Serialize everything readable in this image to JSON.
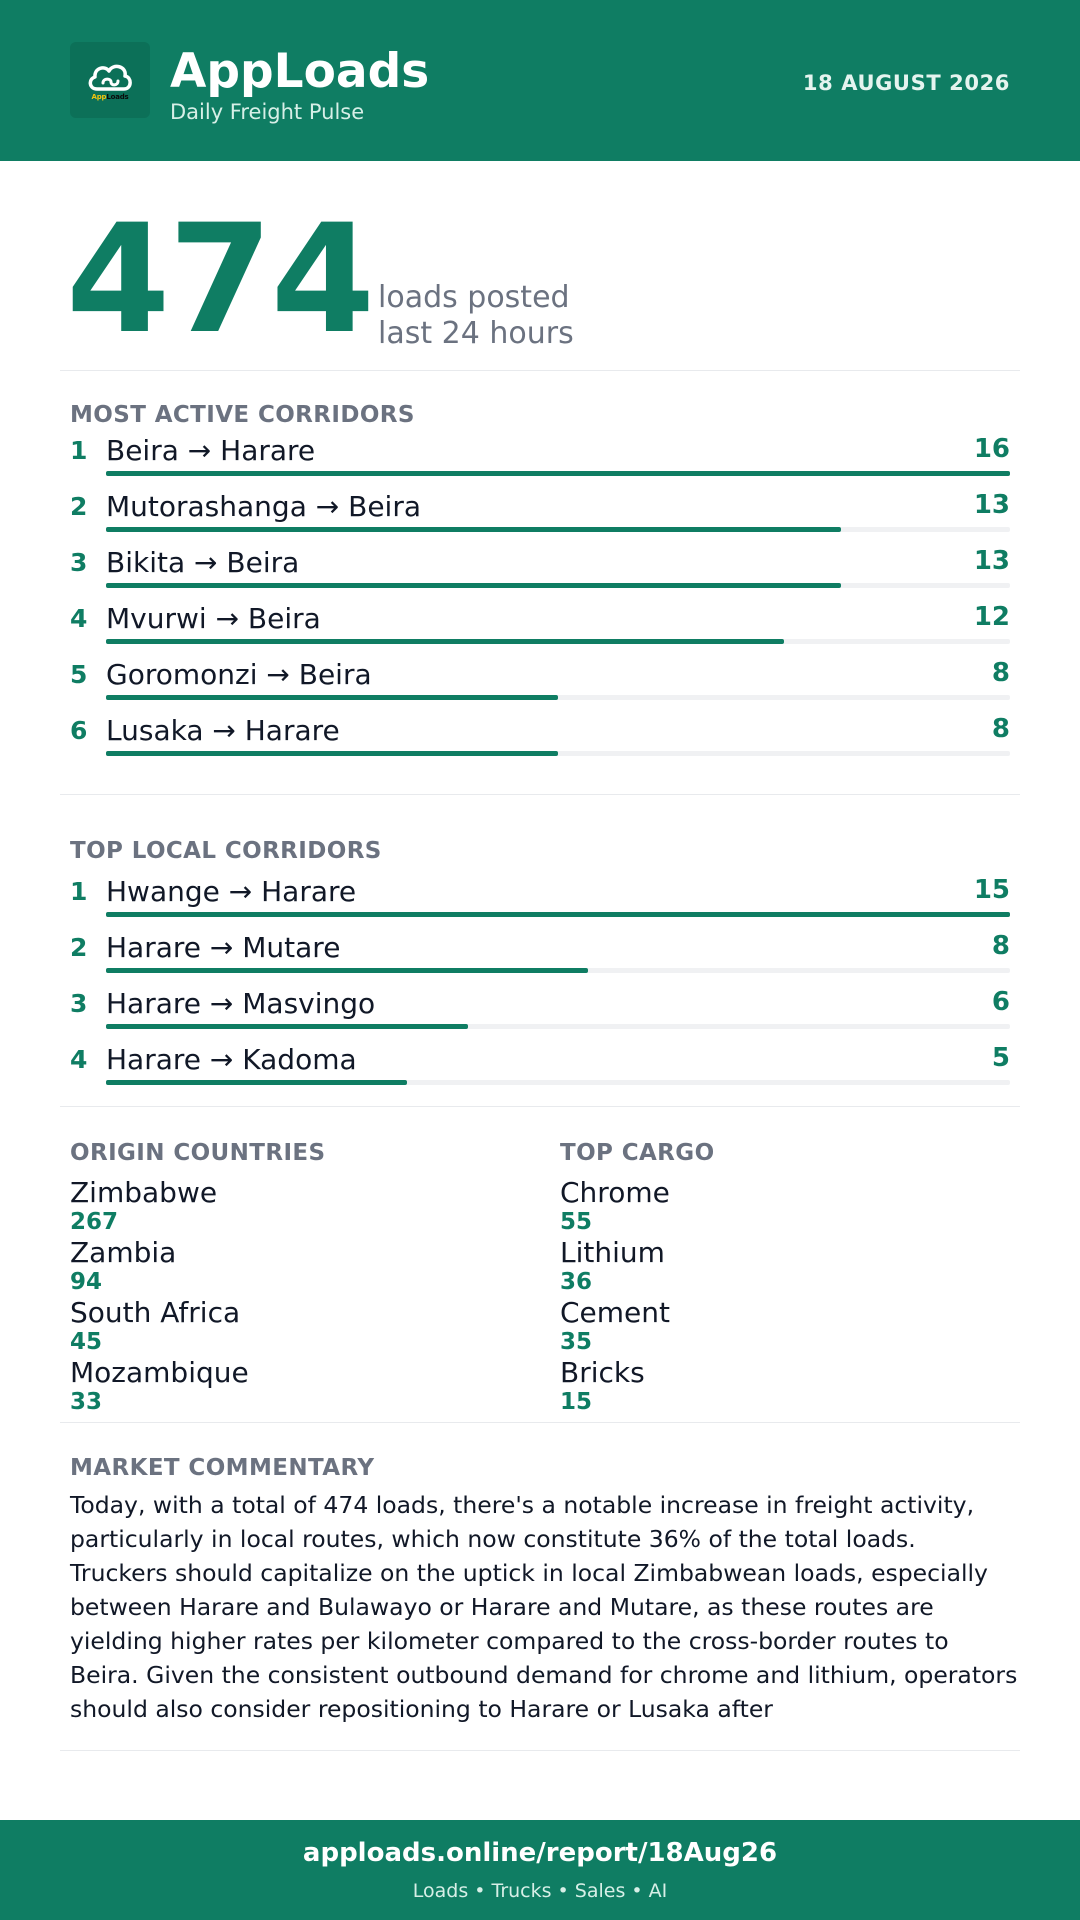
{
  "header": {
    "logo_text_prefix": "App",
    "logo_text_suffix": "Loads",
    "brand": "AppLoads",
    "tagline": "Daily Freight Pulse",
    "date": "18 AUGUST 2026"
  },
  "hero": {
    "value": "474",
    "line1": "loads posted",
    "line2": "last 24 hours"
  },
  "most_active": {
    "title": "MOST ACTIVE CORRIDORS",
    "max": 16,
    "rows": [
      {
        "rank": "1",
        "route": "Beira → Harare",
        "count": 16
      },
      {
        "rank": "2",
        "route": "Mutorashanga → Beira",
        "count": 13
      },
      {
        "rank": "3",
        "route": "Bikita → Beira",
        "count": 13
      },
      {
        "rank": "4",
        "route": "Mvurwi → Beira",
        "count": 12
      },
      {
        "rank": "5",
        "route": "Goromonzi → Beira",
        "count": 8
      },
      {
        "rank": "6",
        "route": "Lusaka → Harare",
        "count": 8
      }
    ]
  },
  "top_local": {
    "title": "TOP LOCAL CORRIDORS",
    "max": 15,
    "rows": [
      {
        "rank": "1",
        "route": "Hwange → Harare",
        "count": 15
      },
      {
        "rank": "2",
        "route": "Harare → Mutare",
        "count": 8
      },
      {
        "rank": "3",
        "route": "Harare → Masvingo",
        "count": 6
      },
      {
        "rank": "4",
        "route": "Harare → Kadoma",
        "count": 5
      }
    ]
  },
  "origin_countries": {
    "title": "ORIGIN COUNTRIES",
    "items": [
      {
        "label": "Zimbabwe",
        "value": "267"
      },
      {
        "label": "Zambia",
        "value": "94"
      },
      {
        "label": "South Africa",
        "value": "45"
      },
      {
        "label": "Mozambique",
        "value": "33"
      }
    ]
  },
  "top_cargo": {
    "title": "TOP CARGO",
    "items": [
      {
        "label": "Chrome",
        "value": "55"
      },
      {
        "label": "Lithium",
        "value": "36"
      },
      {
        "label": "Cement",
        "value": "35"
      },
      {
        "label": "Bricks",
        "value": "15"
      }
    ]
  },
  "commentary": {
    "title": "MARKET COMMENTARY",
    "text": "Today, with a total of 474 loads, there's a notable increase in freight activity, particularly in local routes, which now constitute 36% of the total loads. Truckers should capitalize on the uptick in local Zimbabwean loads, especially between Harare and Bulawayo or Harare and Mutare, as these routes are yielding higher rates per kilometer compared to the cross-border routes to Beira. Given the consistent outbound demand for chrome and lithium, operators should also consider repositioning to Harare or Lusaka after"
  },
  "footer": {
    "url": "apploads.online/report/18Aug26",
    "sub": "Loads • Trucks • Sales • AI"
  },
  "colors": {
    "brand_green": "#0f7d63",
    "muted_text": "#6b7280",
    "track": "#f0f1f3"
  }
}
